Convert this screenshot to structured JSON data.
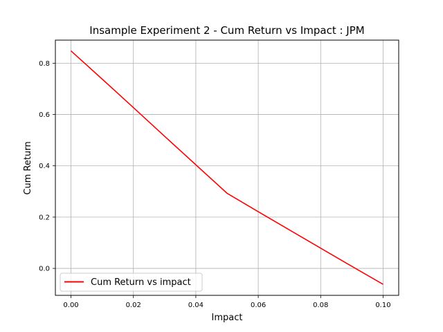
{
  "chart_data": {
    "type": "line",
    "title": "Insample Experiment 2 - Cum Return vs Impact : JPM",
    "xlabel": "Impact",
    "ylabel": "Cum Return",
    "xlim": [
      -0.005,
      0.105
    ],
    "ylim": [
      -0.105,
      0.89
    ],
    "xticks": [
      0.0,
      0.02,
      0.04,
      0.06,
      0.08,
      0.1
    ],
    "xtick_labels": [
      "0.00",
      "0.02",
      "0.04",
      "0.06",
      "0.08",
      "0.10"
    ],
    "yticks": [
      0.0,
      0.2,
      0.4,
      0.6,
      0.8
    ],
    "ytick_labels": [
      "0.0",
      "0.2",
      "0.4",
      "0.6",
      "0.8"
    ],
    "grid": true,
    "legend_position": "lower-left",
    "series": [
      {
        "name": "Cum Return vs impact",
        "color": "#ff0000",
        "x": [
          0.0,
          0.01,
          0.02,
          0.03,
          0.04,
          0.05,
          0.06,
          0.07,
          0.08,
          0.09,
          0.1
        ],
        "y": [
          0.848,
          0.738,
          0.627,
          0.515,
          0.404,
          0.293,
          0.221,
          0.15,
          0.079,
          0.008,
          -0.062
        ]
      }
    ]
  }
}
